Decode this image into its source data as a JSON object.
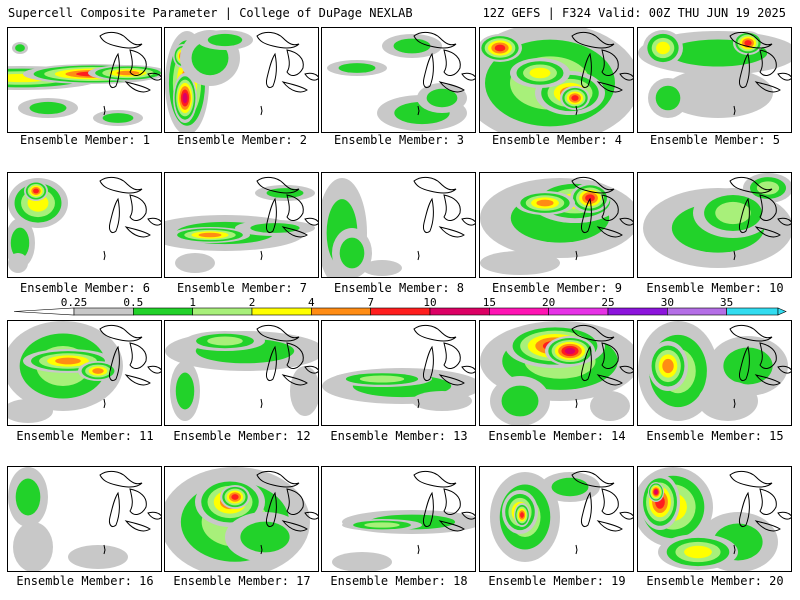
{
  "header": {
    "title": "Supercell Composite Parameter | College of DuPage NEXLAB",
    "run_info": "12Z GEFS | F324 Valid: 00Z THU JUN 19 2025"
  },
  "legend": {
    "thresholds": [
      "0.25",
      "0.5",
      "1",
      "2",
      "4",
      "7",
      "10",
      "15",
      "20",
      "25",
      "30",
      "35"
    ],
    "colors": [
      "#c8c8c8",
      "#22d22a",
      "#a8f07a",
      "#ffff00",
      "#ff8c14",
      "#ff1e1e",
      "#dc0064",
      "#ff14b4",
      "#e632e6",
      "#8c14dc",
      "#b46ee6",
      "#32dcf0"
    ],
    "end_color_left": "#ffffff",
    "end_color_right": "#32dcf0"
  },
  "panels": [
    {
      "label": "Ensemble Member: 1"
    },
    {
      "label": "Ensemble Member: 2"
    },
    {
      "label": "Ensemble Member: 3"
    },
    {
      "label": "Ensemble Member: 4"
    },
    {
      "label": "Ensemble Member: 5"
    },
    {
      "label": "Ensemble Member: 6"
    },
    {
      "label": "Ensemble Member: 7"
    },
    {
      "label": "Ensemble Member: 8"
    },
    {
      "label": "Ensemble Member: 9"
    },
    {
      "label": "Ensemble Member: 10"
    },
    {
      "label": "Ensemble Member: 11"
    },
    {
      "label": "Ensemble Member: 12"
    },
    {
      "label": "Ensemble Member: 13"
    },
    {
      "label": "Ensemble Member: 14"
    },
    {
      "label": "Ensemble Member: 15"
    },
    {
      "label": "Ensemble Member: 16"
    },
    {
      "label": "Ensemble Member: 17"
    },
    {
      "label": "Ensemble Member: 18"
    },
    {
      "label": "Ensemble Member: 19"
    },
    {
      "label": "Ensemble Member: 20"
    }
  ]
}
